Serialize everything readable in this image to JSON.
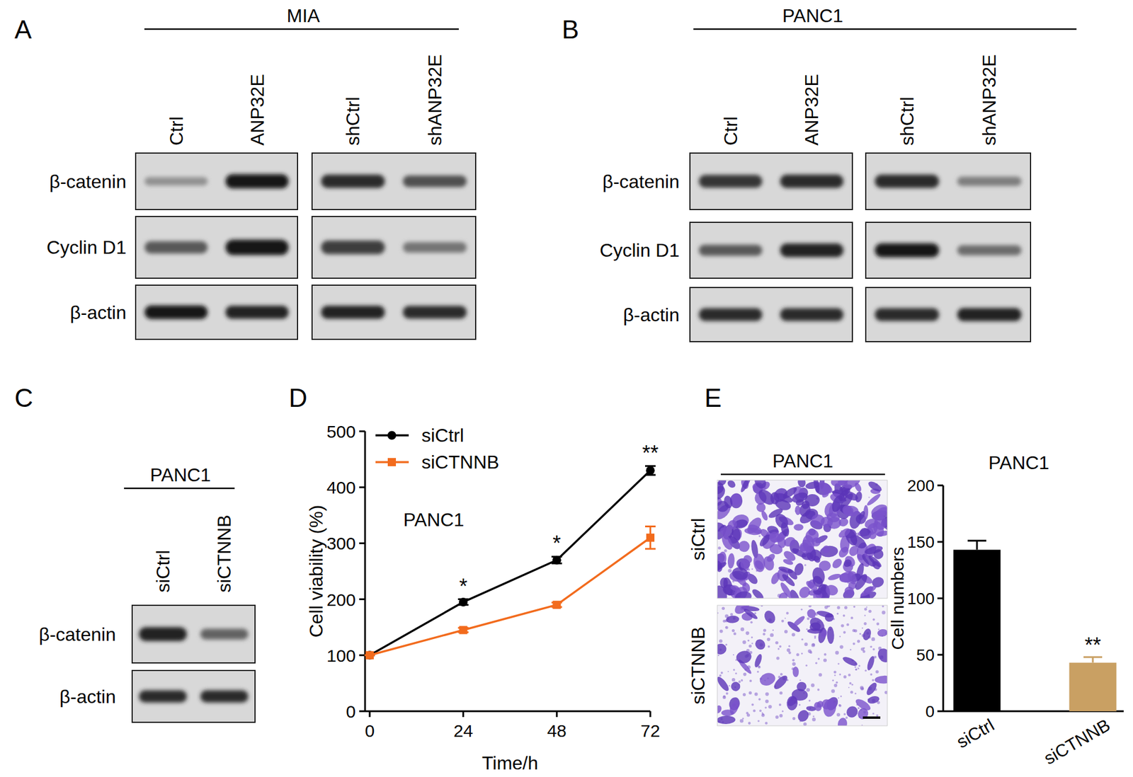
{
  "panel_labels": [
    "A",
    "B",
    "C",
    "D",
    "E"
  ],
  "blots": [
    {
      "title": "MIA",
      "groups": [
        {
          "lanes": [
            "Ctrl",
            "ANP32E"
          ]
        },
        {
          "lanes": [
            "shCtrl",
            "shANP32E"
          ]
        }
      ],
      "rows": [
        {
          "label": "β-catenin",
          "intensity": [
            [
              0.3,
              0.95
            ],
            [
              0.85,
              0.65
            ]
          ]
        },
        {
          "label": "Cyclin D1",
          "intensity": [
            [
              0.6,
              0.95
            ],
            [
              0.75,
              0.45
            ]
          ]
        },
        {
          "label": "β-actin",
          "intensity": [
            [
              0.95,
              0.9
            ],
            [
              0.9,
              0.85
            ]
          ]
        }
      ]
    },
    {
      "title": "PANC1",
      "groups": [
        {
          "lanes": [
            "Ctrl",
            "ANP32E"
          ]
        },
        {
          "lanes": [
            "shCtrl",
            "shANP32E"
          ]
        }
      ],
      "rows": [
        {
          "label": "β-catenin",
          "intensity": [
            [
              0.8,
              0.85
            ],
            [
              0.85,
              0.4
            ]
          ]
        },
        {
          "label": "Cyclin D1",
          "intensity": [
            [
              0.6,
              0.9
            ],
            [
              0.95,
              0.5
            ]
          ]
        },
        {
          "label": "β-actin",
          "intensity": [
            [
              0.85,
              0.85
            ],
            [
              0.85,
              0.9
            ]
          ]
        }
      ]
    },
    {
      "title": "PANC1",
      "groups": [
        {
          "lanes": [
            "siCtrl",
            "siCTNNB"
          ]
        }
      ],
      "rows": [
        {
          "label": "β-catenin",
          "intensity": [
            [
              0.9,
              0.55
            ]
          ]
        },
        {
          "label": "β-actin",
          "intensity": [
            [
              0.85,
              0.85
            ]
          ]
        }
      ]
    }
  ],
  "micrographs": {
    "title": "PANC1",
    "rows": [
      "siCtrl",
      "siCTNNB"
    ]
  },
  "chart_data": [
    {
      "type": "line",
      "title": "PANC1",
      "x": [
        0,
        24,
        48,
        72
      ],
      "xlim": [
        0,
        72
      ],
      "xticks": [
        0,
        24,
        48,
        72
      ],
      "ylim": [
        0,
        500
      ],
      "yticks": [
        0,
        100,
        200,
        300,
        400,
        500
      ],
      "x_label": "Time/h",
      "y_label": "Cell viability (%)",
      "legend": "upper left",
      "series": [
        {
          "name": "siCtrl",
          "color": "#000000",
          "marker": "circle",
          "values": [
            100,
            195,
            270,
            430
          ],
          "errors": [
            0,
            5,
            6,
            8
          ]
        },
        {
          "name": "siCTNNB",
          "color": "#f26b1d",
          "marker": "square",
          "values": [
            100,
            145,
            190,
            310
          ],
          "errors": [
            0,
            4,
            4,
            20
          ]
        }
      ],
      "annotations": [
        {
          "x": 24,
          "text": "*"
        },
        {
          "x": 48,
          "text": "*"
        },
        {
          "x": 72,
          "text": "**"
        }
      ]
    },
    {
      "type": "bar",
      "title": "PANC1",
      "categories": [
        "siCtrl",
        "siCTNNB"
      ],
      "values": [
        143,
        43
      ],
      "errors": [
        8,
        5
      ],
      "colors": [
        "#000000",
        "#c9a063"
      ],
      "ylim": [
        0,
        200
      ],
      "yticks": [
        0,
        50,
        100,
        150,
        200
      ],
      "y_label": "Cell numbers",
      "annotations": [
        {
          "category": "siCTNNB",
          "text": "**"
        }
      ]
    }
  ]
}
